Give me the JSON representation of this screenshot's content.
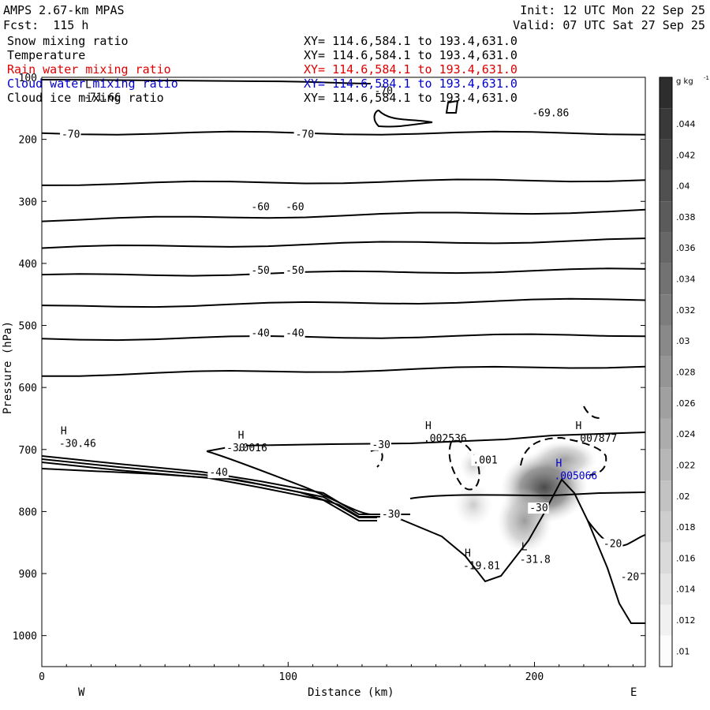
{
  "header": {
    "title": "AMPS 2.67-km MPAS",
    "forecast": "Fcst:  115 h",
    "init": "Init: 12 UTC Mon 22 Sep 25",
    "valid": "Valid: 07 UTC Sat 27 Sep 25"
  },
  "fields": [
    {
      "name": "Snow mixing ratio",
      "xy": "XY= 114.6,584.1 to 193.4,631.0",
      "color": "#000000"
    },
    {
      "name": "Temperature",
      "xy": "XY= 114.6,584.1 to 193.4,631.0",
      "color": "#000000"
    },
    {
      "name": "Rain water mixing ratio",
      "xy": "XY= 114.6,584.1 to 193.4,631.0",
      "color": "#e00000"
    },
    {
      "name": "Cloud water mixing ratio",
      "xy": "XY= 114.6,584.1 to 193.4,631.0",
      "color": "#0000cc"
    },
    {
      "name": "Cloud ice mixing ratio",
      "xy": "XY= 114.6,584.1 to 193.4,631.0",
      "color": "#000000"
    }
  ],
  "chart_data": {
    "type": "contour",
    "xlabel": "Distance (km)",
    "ylabel": "Pressure (hPa)",
    "xlim": [
      0,
      245
    ],
    "ylim": [
      1050,
      100
    ],
    "xticks": [
      0,
      100,
      200
    ],
    "yticks": [
      100,
      200,
      300,
      400,
      500,
      600,
      700,
      800,
      900,
      1000
    ],
    "direction_labels": {
      "left": "W",
      "right": "E"
    },
    "colorbar": {
      "unit": "g kg",
      "unit_exp": "-1",
      "ticks": [
        ".01",
        ".012",
        ".014",
        ".016",
        ".018",
        ".02",
        ".022",
        ".024",
        ".026",
        ".028",
        ".03",
        ".032",
        ".034",
        ".036",
        ".038",
        ".04",
        ".042",
        ".044"
      ]
    },
    "temperature_contours": [
      {
        "label": "-70",
        "p_left": 190,
        "p_right": 190
      },
      {
        "label": "",
        "p_left": 272,
        "p_right": 265
      },
      {
        "label": "-60",
        "p_left": 330,
        "p_right": 315
      },
      {
        "label": "",
        "p_left": 375,
        "p_right": 362
      },
      {
        "label": "-50",
        "p_left": 420,
        "p_right": 410
      },
      {
        "label": "",
        "p_left": 470,
        "p_right": 458
      },
      {
        "label": "-40",
        "p_left": 522,
        "p_right": 515
      },
      {
        "label": "",
        "p_left": 580,
        "p_right": 565
      }
    ],
    "contour_labels": [
      {
        "text": "-70",
        "x": 8,
        "p": 195
      },
      {
        "text": "-70",
        "x": 103,
        "p": 195
      },
      {
        "text": "-60",
        "x": 85,
        "p": 312
      },
      {
        "text": "-60",
        "x": 99,
        "p": 312
      },
      {
        "text": "-50",
        "x": 85,
        "p": 414
      },
      {
        "text": "-50",
        "x": 99,
        "p": 414
      },
      {
        "text": "-40",
        "x": 85,
        "p": 515
      },
      {
        "text": "-40",
        "x": 99,
        "p": 515
      },
      {
        "text": "-70",
        "x": 135,
        "p": 125
      },
      {
        "text": "-30",
        "x": 75,
        "p": 700
      },
      {
        "text": "-30",
        "x": 134,
        "p": 695
      },
      {
        "text": "-40",
        "x": 68,
        "p": 740
      },
      {
        "text": "-30",
        "x": 138,
        "p": 807
      },
      {
        "text": "-30",
        "x": 198,
        "p": 797
      },
      {
        "text": "-20",
        "x": 228,
        "p": 855
      },
      {
        "text": "-20",
        "x": 235,
        "p": 908
      },
      {
        "text": ".001",
        "x": 175,
        "p": 720
      }
    ],
    "extrema": [
      {
        "type": "L",
        "value": "-71.66",
        "x": 17,
        "p": 125
      },
      {
        "type": "",
        "value": "-69.86",
        "x": 199,
        "p": 150
      },
      {
        "type": "H",
        "value": "-30.46",
        "x": 7,
        "p": 683
      },
      {
        "type": "H",
        "value": ".0016",
        "x": 79,
        "p": 690
      },
      {
        "type": "H",
        "value": ".002536",
        "x": 155,
        "p": 675
      },
      {
        "type": "H",
        "value": ".007877",
        "x": 216,
        "p": 675
      },
      {
        "type": "H",
        "value": ".005066",
        "x": 208,
        "p": 735,
        "color": "#0000cc"
      },
      {
        "type": "H",
        "value": "-19.81",
        "x": 171,
        "p": 880
      },
      {
        "type": "L",
        "value": "-31.8",
        "x": 194,
        "p": 870
      }
    ]
  }
}
